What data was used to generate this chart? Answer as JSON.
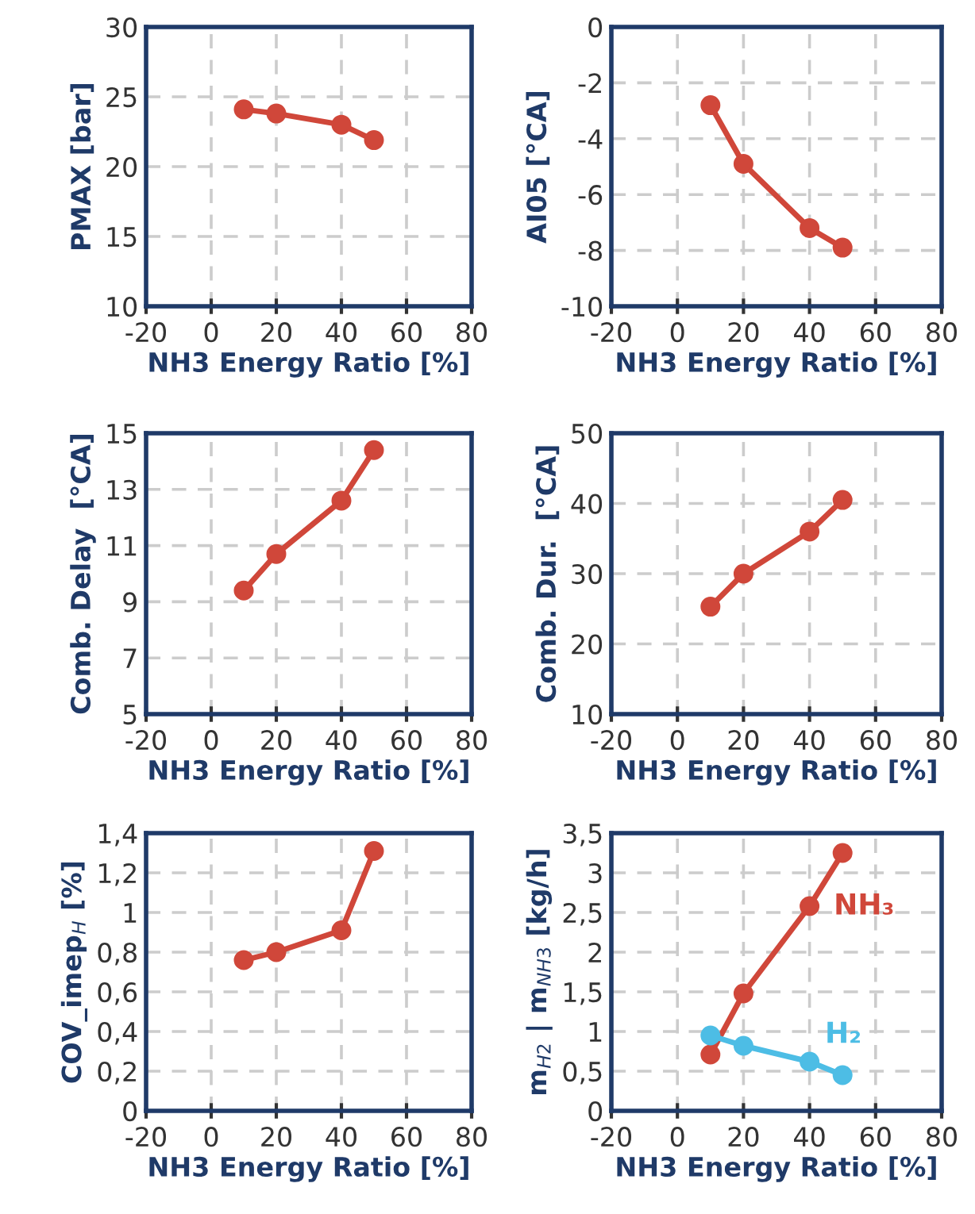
{
  "chart_data": [
    {
      "type": "line",
      "xlabel": "NH3 Energy Ratio [%]",
      "ylabel": "PMAX [bar]",
      "x": [
        10,
        20,
        40,
        50
      ],
      "series": [
        {
          "color": "#d0473a",
          "values": [
            24.1,
            23.8,
            23.0,
            21.9
          ]
        }
      ],
      "xlim": [
        -20,
        80
      ],
      "xticks": [
        -20,
        0,
        20,
        40,
        60,
        80
      ],
      "ylim": [
        10,
        30
      ],
      "yticks": [
        10,
        15,
        20,
        25,
        30
      ],
      "grid": true,
      "marker": "circle",
      "line_style": "solid"
    },
    {
      "type": "line",
      "xlabel": "NH3 Energy Ratio [%]",
      "ylabel": "AI05 [°CA]",
      "x": [
        10,
        20,
        40,
        50
      ],
      "series": [
        {
          "color": "#d0473a",
          "values": [
            -2.8,
            -4.9,
            -7.2,
            -7.9
          ]
        }
      ],
      "xlim": [
        -20,
        80
      ],
      "xticks": [
        -20,
        0,
        20,
        40,
        60,
        80
      ],
      "ylim": [
        -10,
        0
      ],
      "yticks": [
        -10,
        -8,
        -6,
        -4,
        -2,
        0
      ],
      "grid": true,
      "marker": "circle",
      "line_style": "solid"
    },
    {
      "type": "line",
      "xlabel": "NH3 Energy Ratio [%]",
      "ylabel": "Comb. Delay  [°CA]",
      "x": [
        10,
        20,
        40,
        50
      ],
      "series": [
        {
          "color": "#d0473a",
          "values": [
            9.4,
            10.7,
            12.6,
            14.4
          ]
        }
      ],
      "xlim": [
        -20,
        80
      ],
      "xticks": [
        -20,
        0,
        20,
        40,
        60,
        80
      ],
      "ylim": [
        5,
        15
      ],
      "yticks": [
        5,
        7,
        9,
        11,
        13,
        15
      ],
      "grid": true,
      "marker": "circle",
      "line_style": "solid"
    },
    {
      "type": "line",
      "xlabel": "NH3 Energy Ratio [%]",
      "ylabel": "Comb. Dur.  [°CA]",
      "x": [
        10,
        20,
        40,
        50
      ],
      "series": [
        {
          "color": "#d0473a",
          "values": [
            25.3,
            30.0,
            36.0,
            40.5
          ]
        }
      ],
      "xlim": [
        -20,
        80
      ],
      "xticks": [
        -20,
        0,
        20,
        40,
        60,
        80
      ],
      "ylim": [
        10,
        50
      ],
      "yticks": [
        10,
        20,
        30,
        40,
        50
      ],
      "grid": true,
      "marker": "circle",
      "line_style": "solid"
    },
    {
      "type": "line",
      "xlabel": "NH3 Energy Ratio [%]",
      "ylabel": "COV_imep$_{H}$ [%]",
      "x": [
        10,
        20,
        40,
        50
      ],
      "series": [
        {
          "color": "#d0473a",
          "values": [
            0.76,
            0.8,
            0.91,
            1.31
          ]
        }
      ],
      "xlim": [
        -20,
        80
      ],
      "xticks": [
        -20,
        0,
        20,
        40,
        60,
        80
      ],
      "ylim": [
        0,
        1.4
      ],
      "yticks": [
        0,
        {
          "value": 0.2,
          "label": "0,2"
        },
        {
          "value": 0.4,
          "label": "0,4"
        },
        {
          "value": 0.6,
          "label": "0,6"
        },
        {
          "value": 0.8,
          "label": "0,8"
        },
        1,
        {
          "value": 1.2,
          "label": "1,2"
        },
        {
          "value": 1.4,
          "label": "1,4"
        }
      ],
      "grid": true,
      "marker": "circle",
      "line_style": "solid"
    },
    {
      "type": "line",
      "xlabel": "NH3 Energy Ratio [%]",
      "ylabel": "m$_{H2}$ | m$_{NH3}$ [kg/h]",
      "x": [
        10,
        20,
        40,
        50
      ],
      "series": [
        {
          "name": "NH₃",
          "color": "#d0473a",
          "values": [
            0.71,
            1.48,
            2.58,
            3.25
          ]
        },
        {
          "name": "H₂",
          "color": "#4dbde5",
          "values": [
            0.95,
            0.82,
            0.62,
            0.45
          ]
        }
      ],
      "xlim": [
        -20,
        80
      ],
      "xticks": [
        -20,
        0,
        20,
        40,
        60,
        80
      ],
      "ylim": [
        0,
        3.5
      ],
      "yticks": [
        0,
        {
          "value": 0.5,
          "label": "0,5"
        },
        1,
        {
          "value": 1.5,
          "label": "1,5"
        },
        2,
        {
          "value": 2.5,
          "label": "2,5"
        },
        3,
        {
          "value": 3.5,
          "label": "3,5"
        }
      ],
      "grid": true,
      "marker": "circle",
      "line_style": "solid"
    }
  ]
}
